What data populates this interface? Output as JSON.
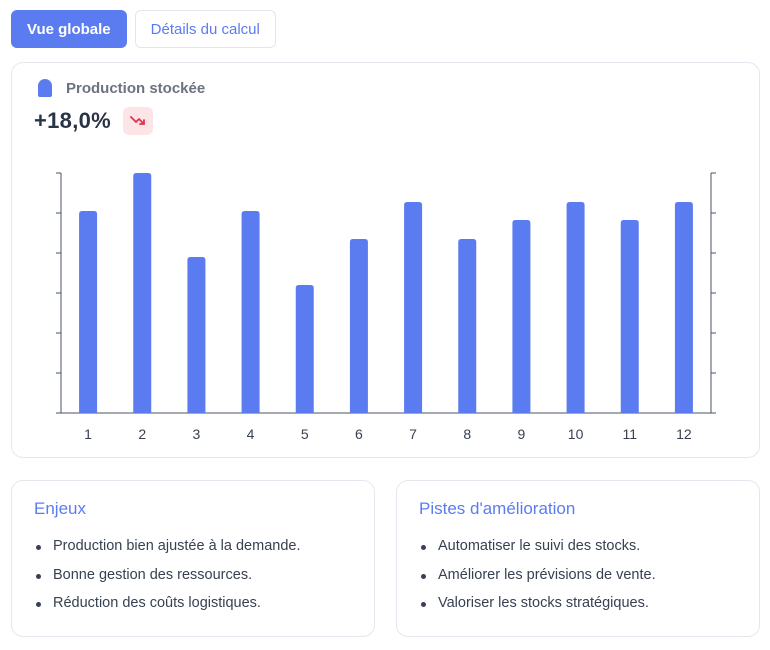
{
  "tabs": [
    {
      "label": "Vue globale",
      "active": true
    },
    {
      "label": "Détails du calcul",
      "active": false
    }
  ],
  "summary": {
    "series_label": "Production stockée",
    "value": "+18,0%",
    "trend_icon": "trend-down-icon",
    "trend_color": "#e0344f"
  },
  "chart_data": {
    "type": "bar",
    "categories": [
      "1",
      "2",
      "3",
      "4",
      "5",
      "6",
      "7",
      "8",
      "9",
      "10",
      "11",
      "12"
    ],
    "series": [
      {
        "name": "Production stockée",
        "color": "#5b7cf0",
        "values": [
          101,
          120,
          78,
          101,
          64,
          87,
          105.5,
          87,
          96.5,
          105.5,
          96.5,
          105.5
        ]
      }
    ],
    "ylim": [
      0,
      120
    ],
    "grid": false
  },
  "enjeux": {
    "title": "Enjeux",
    "items": [
      "Production bien ajustée à la demande.",
      "Bonne gestion des ressources.",
      "Réduction des coûts logistiques."
    ]
  },
  "pistes": {
    "title": "Pistes d'amélioration",
    "items": [
      "Automatiser le suivi des stocks.",
      "Améliorer les prévisions de vente.",
      "Valoriser les stocks stratégiques."
    ]
  }
}
